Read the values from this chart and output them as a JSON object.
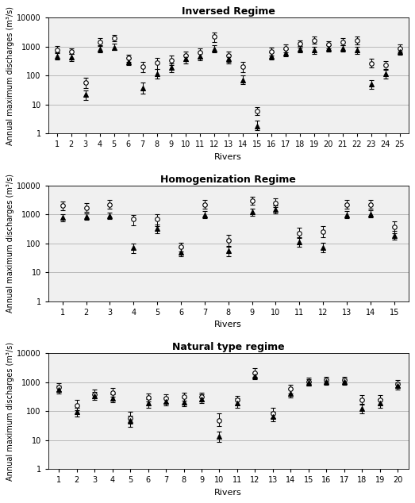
{
  "panels": [
    {
      "title": "Inversed Regime",
      "rivers": [
        1,
        2,
        3,
        4,
        5,
        6,
        7,
        8,
        9,
        10,
        11,
        12,
        13,
        14,
        15,
        16,
        17,
        18,
        19,
        20,
        21,
        22,
        23,
        24,
        25
      ],
      "ED_val": [
        800,
        700,
        60,
        1500,
        2000,
        400,
        200,
        280,
        350,
        500,
        650,
        2200,
        500,
        200,
        6,
        700,
        900,
        1300,
        1700,
        1200,
        1500,
        1700,
        270,
        230,
        900
      ],
      "ED_lo": [
        600,
        550,
        38,
        1100,
        1600,
        300,
        130,
        170,
        230,
        330,
        420,
        1500,
        310,
        130,
        4.5,
        510,
        650,
        950,
        1250,
        900,
        1100,
        1200,
        190,
        160,
        700
      ],
      "ED_hi": [
        1050,
        900,
        85,
        2000,
        2500,
        540,
        310,
        410,
        490,
        700,
        870,
        3200,
        700,
        300,
        8,
        940,
        1200,
        1700,
        2200,
        1600,
        2000,
        2200,
        380,
        320,
        1200
      ],
      "OD_val": [
        480,
        430,
        22,
        850,
        950,
        300,
        38,
        120,
        190,
        380,
        480,
        850,
        380,
        70,
        1.8,
        480,
        620,
        850,
        760,
        860,
        870,
        760,
        52,
        120,
        680
      ],
      "OD_lo": [
        360,
        330,
        15,
        660,
        760,
        230,
        24,
        82,
        130,
        265,
        345,
        660,
        265,
        50,
        1.3,
        360,
        475,
        660,
        570,
        665,
        665,
        570,
        36,
        82,
        530
      ],
      "OD_hi": [
        630,
        570,
        32,
        1050,
        1250,
        400,
        57,
        172,
        270,
        530,
        655,
        1130,
        530,
        105,
        2.8,
        650,
        810,
        1060,
        1000,
        1100,
        1100,
        1000,
        72,
        172,
        870
      ]
    },
    {
      "title": "Homogenization Regime",
      "rivers": [
        1,
        2,
        3,
        4,
        5,
        6,
        7,
        8,
        9,
        10,
        11,
        12,
        13,
        14,
        15
      ],
      "ED_val": [
        2000,
        1700,
        2200,
        700,
        700,
        75,
        2200,
        130,
        3000,
        2500,
        230,
        250,
        2200,
        2200,
        380
      ],
      "ED_lo": [
        1400,
        1200,
        1600,
        420,
        400,
        52,
        1600,
        75,
        2200,
        1800,
        160,
        160,
        1600,
        1600,
        230
      ],
      "ED_hi": [
        2800,
        2400,
        3100,
        980,
        1000,
        105,
        3100,
        200,
        4200,
        3600,
        350,
        400,
        3100,
        3100,
        580
      ],
      "OD_val": [
        780,
        870,
        900,
        70,
        320,
        50,
        980,
        55,
        1200,
        1500,
        110,
        70,
        980,
        1050,
        190
      ],
      "OD_lo": [
        580,
        670,
        700,
        46,
        230,
        35,
        730,
        37,
        900,
        1100,
        77,
        50,
        730,
        790,
        133
      ],
      "OD_hi": [
        1020,
        1100,
        1130,
        100,
        450,
        73,
        1280,
        80,
        1600,
        2050,
        158,
        103,
        1280,
        1360,
        268
      ]
    },
    {
      "title": "Natural type regime",
      "rivers": [
        1,
        2,
        3,
        4,
        5,
        6,
        7,
        8,
        9,
        10,
        11,
        12,
        13,
        14,
        15,
        16,
        17,
        18,
        19,
        20
      ],
      "ED_val": [
        650,
        160,
        380,
        430,
        58,
        290,
        270,
        305,
        310,
        48,
        240,
        2100,
        85,
        580,
        1050,
        1150,
        1150,
        240,
        240,
        870
      ],
      "ED_lo": [
        480,
        110,
        275,
        315,
        36,
        210,
        192,
        228,
        232,
        31,
        162,
        1520,
        57,
        402,
        765,
        870,
        870,
        172,
        162,
        652
      ],
      "ED_hi": [
        910,
        238,
        552,
        614,
        95,
        414,
        386,
        434,
        434,
        81,
        338,
        2990,
        126,
        826,
        1400,
        1495,
        1495,
        348,
        348,
        1160
      ],
      "OD_val": [
        570,
        95,
        330,
        275,
        46,
        190,
        218,
        208,
        265,
        13,
        190,
        1620,
        65,
        410,
        1000,
        1050,
        1050,
        122,
        190,
        760
      ],
      "OD_lo": [
        398,
        65,
        240,
        199,
        29,
        133,
        155,
        146,
        190,
        8.5,
        132,
        1240,
        44,
        295,
        760,
        808,
        808,
        84,
        132,
        568
      ],
      "OD_hi": [
        782,
        133,
        456,
        381,
        68,
        268,
        304,
        291,
        372,
        19,
        272,
        2100,
        95,
        575,
        1290,
        1340,
        1340,
        175,
        268,
        1004
      ]
    }
  ],
  "ylabel": "Annual maximum discharges (m³/s)",
  "xlabel": "Rivers",
  "ylim_log": [
    1,
    10000
  ],
  "yticks": [
    1,
    10,
    100,
    1000,
    10000
  ],
  "ytick_labels": [
    "1",
    "10",
    "100",
    "1000",
    "10000"
  ],
  "bg_color": "#f0f0f0",
  "grid_color": "#b0b0b0",
  "ed_marker": "o",
  "od_marker": "^",
  "marker_color": "black",
  "marker_facecolor_ed": "white",
  "marker_facecolor_od": "black",
  "marker_size": 4,
  "capsize": 2,
  "linewidth": 0.7,
  "title_fontsize": 9,
  "label_fontsize": 7,
  "tick_fontsize": 7
}
